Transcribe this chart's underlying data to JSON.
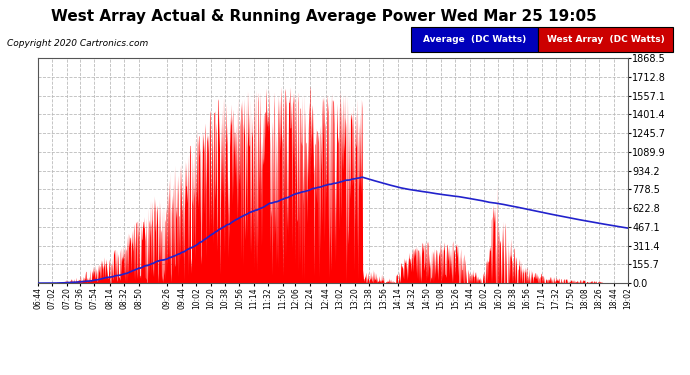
{
  "title": "West Array Actual & Running Average Power Wed Mar 25 19:05",
  "copyright": "Copyright 2020 Cartronics.com",
  "legend_avg": "Average  (DC Watts)",
  "legend_west": "West Array  (DC Watts)",
  "yticks": [
    0.0,
    155.7,
    311.4,
    467.1,
    622.8,
    778.5,
    934.2,
    1089.9,
    1245.7,
    1401.4,
    1557.1,
    1712.8,
    1868.5
  ],
  "ymax": 1868.5,
  "bg_color": "#ffffff",
  "plot_bg_color": "#ffffff",
  "grid_color": "#bbbbbb",
  "fill_color": "#ff0000",
  "avg_line_color": "#2222cc",
  "title_fontsize": 11,
  "xtick_labels": [
    "06:44",
    "07:02",
    "07:20",
    "07:36",
    "07:54",
    "08:14",
    "08:32",
    "08:50",
    "09:26",
    "09:44",
    "10:02",
    "10:20",
    "10:38",
    "10:56",
    "11:14",
    "11:32",
    "11:50",
    "12:06",
    "12:24",
    "12:44",
    "13:02",
    "13:20",
    "13:38",
    "13:56",
    "14:14",
    "14:32",
    "14:50",
    "15:08",
    "15:26",
    "15:44",
    "16:02",
    "16:20",
    "16:38",
    "16:56",
    "17:14",
    "17:32",
    "17:50",
    "18:08",
    "18:26",
    "18:44",
    "19:02"
  ]
}
